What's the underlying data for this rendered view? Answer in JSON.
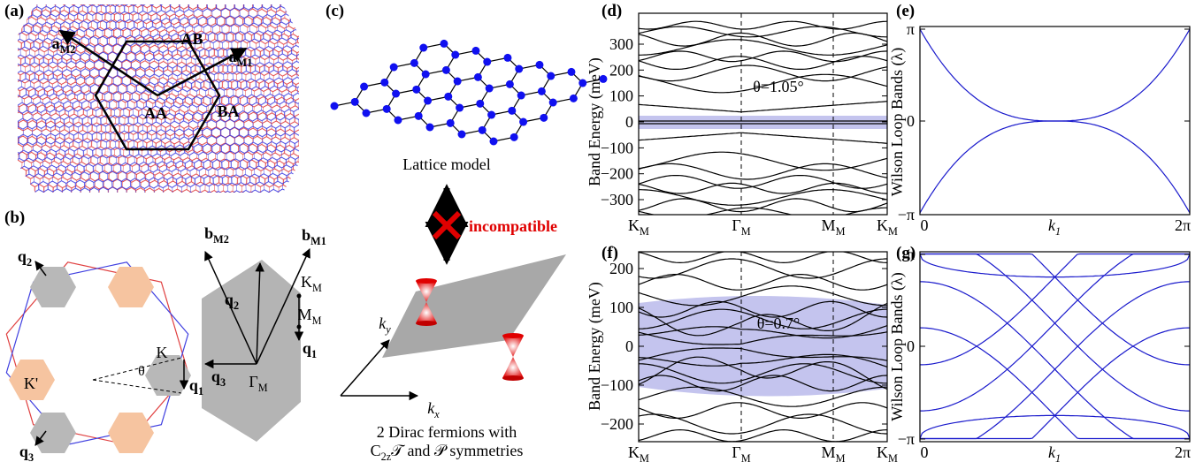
{
  "panel_a": {
    "label": "(a)",
    "vectors": [
      {
        "main": "a",
        "sub": "M2"
      },
      {
        "main": "a",
        "sub": "M1"
      }
    ],
    "stackings": [
      "AA",
      "AB",
      "BA"
    ]
  },
  "panel_b": {
    "label": "(b)",
    "moire_q": [
      {
        "main": "q",
        "sub": "1"
      },
      {
        "main": "q",
        "sub": "2"
      },
      {
        "main": "q",
        "sub": "3"
      }
    ],
    "valleys": [
      "K",
      "K'"
    ],
    "angle": "θ",
    "reciprocal": [
      {
        "main": "b",
        "sub": "M2"
      },
      {
        "main": "b",
        "sub": "M1"
      }
    ],
    "points": [
      {
        "main": "K",
        "sub": "M"
      },
      {
        "main": "M",
        "sub": "M"
      },
      {
        "main": "Γ",
        "sub": "M"
      }
    ],
    "bz_q": [
      {
        "main": "q",
        "sub": "1"
      },
      {
        "main": "q",
        "sub": "2"
      },
      {
        "main": "q",
        "sub": "3"
      }
    ]
  },
  "panel_c": {
    "label": "(c)",
    "lattice_caption": "Lattice model",
    "relation": "incompatible",
    "axes": [
      {
        "main": "k",
        "sub": "x"
      },
      {
        "main": "k",
        "sub": "y"
      }
    ],
    "caption": [
      "2 Dirac fermions with",
      {
        "main": "C",
        "sub": "2z",
        "rest": "𝒯 and 𝒫 symmetries"
      }
    ]
  },
  "panel_d": {
    "label": "(d)",
    "y_title": "Band Energy (meV)",
    "y_ticks": [
      "300",
      "200",
      "100",
      "0",
      "−100",
      "−200",
      "−300"
    ],
    "x_ticks": [
      {
        "main": "K",
        "sub": "M"
      },
      {
        "main": "Γ",
        "sub": "M"
      },
      {
        "main": "M",
        "sub": "M"
      },
      {
        "main": "K",
        "sub": "M"
      }
    ],
    "annotation": "θ=1.05°"
  },
  "panel_e": {
    "label": "(e)",
    "y_title": "Wilson Loop Bands (λ)",
    "y_ticks": [
      "π",
      "0",
      "−π"
    ],
    "x_ticks": [
      "0",
      {
        "main": "k",
        "sub": "1"
      },
      "2π"
    ]
  },
  "panel_f": {
    "label": "(f)",
    "y_title": "Band Energy (meV)",
    "y_ticks": [
      "200",
      "100",
      "0",
      "−100",
      "−200"
    ],
    "x_ticks": [
      {
        "main": "K",
        "sub": "M"
      },
      {
        "main": "Γ",
        "sub": "M"
      },
      {
        "main": "M",
        "sub": "M"
      },
      {
        "main": "K",
        "sub": "M"
      }
    ],
    "annotation": "θ=0.7°"
  },
  "panel_g": {
    "label": "(g)",
    "y_title": "Wilson Loop Bands (λ)",
    "y_ticks": [
      "π",
      "0",
      "−π"
    ],
    "x_ticks": [
      "0",
      {
        "main": "k",
        "sub": "1"
      },
      "2π"
    ]
  }
}
